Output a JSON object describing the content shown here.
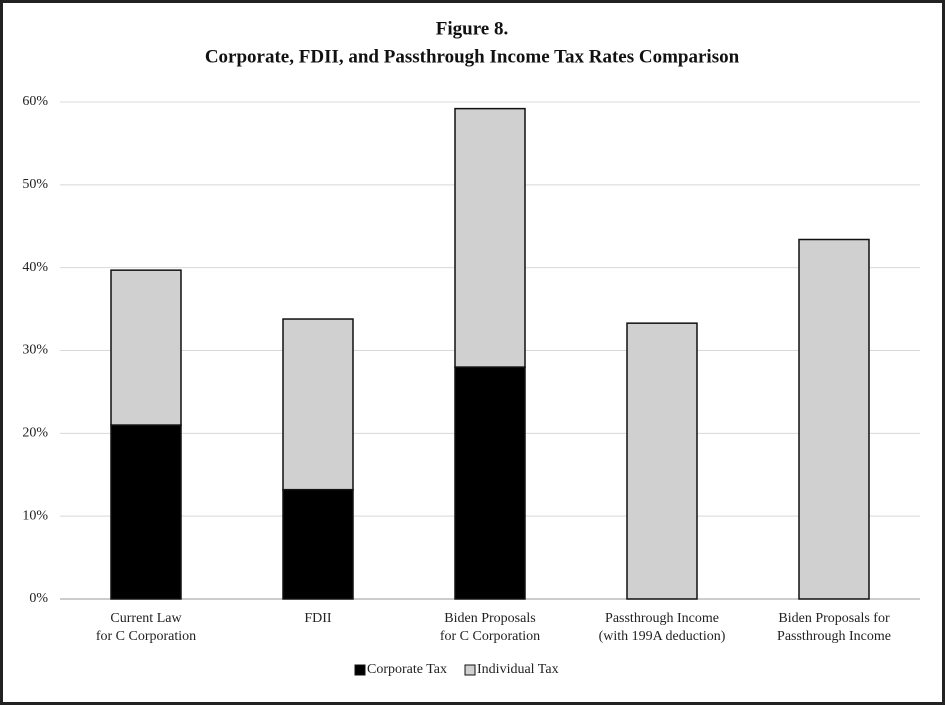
{
  "chart_data": {
    "type": "stacked-bar",
    "title": "Figure 8.",
    "subtitle": "Corporate, FDII, and Passthrough Income Tax Rates Comparison",
    "categories": [
      [
        "Current Law",
        "for C Corporation"
      ],
      [
        "FDII"
      ],
      [
        "Biden Proposals",
        "for C Corporation"
      ],
      [
        "Passthrough Income",
        "(with 199A deduction)"
      ],
      [
        "Biden Proposals for",
        "Passthrough Income"
      ]
    ],
    "series": [
      {
        "name": "Corporate Tax",
        "color": "#000000",
        "values": [
          21,
          13.2,
          28,
          0,
          0
        ]
      },
      {
        "name": "Individual Tax",
        "color": "#d0d0d0",
        "values": [
          18.7,
          20.6,
          31.2,
          33.3,
          43.4
        ]
      }
    ],
    "ylim": [
      0,
      60
    ],
    "yticks": [
      {
        "value": 0,
        "label": "0%"
      },
      {
        "value": 10,
        "label": "10%"
      },
      {
        "value": 20,
        "label": "20%"
      },
      {
        "value": 30,
        "label": "30%"
      },
      {
        "value": 40,
        "label": "40%"
      },
      {
        "value": 50,
        "label": "50%"
      },
      {
        "value": 60,
        "label": "60%"
      }
    ],
    "grid": true
  }
}
